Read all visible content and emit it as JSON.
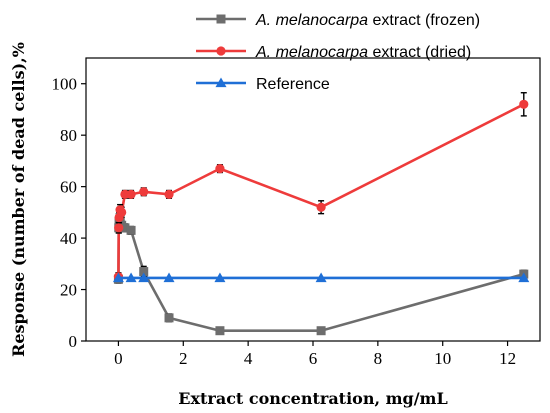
{
  "chart_data": {
    "type": "line",
    "xlabel": "Extract concentration, mg/mL",
    "ylabel": "Response (number of dead cells),%",
    "xlim": [
      -1,
      13
    ],
    "ylim": [
      0,
      110
    ],
    "x_ticks": [
      0,
      2,
      4,
      6,
      8,
      10,
      12
    ],
    "y_ticks": [
      0,
      20,
      40,
      60,
      80,
      100
    ],
    "grid": false,
    "legend_position": "top-right",
    "series": [
      {
        "name_italic": "A. melanocarpa",
        "name_rest": " extract (frozen)",
        "color": "#6d6d6d",
        "marker": "square",
        "x": [
          0.0,
          0.01,
          0.02,
          0.05,
          0.1,
          0.2,
          0.39,
          0.78,
          1.56,
          3.13,
          6.25,
          12.5
        ],
        "y": [
          24,
          44,
          46,
          48,
          45,
          44,
          43,
          27,
          9,
          4,
          4,
          26
        ],
        "err": [
          1.5,
          2,
          2,
          2,
          2,
          1.5,
          1.5,
          2,
          1.5,
          1,
          1,
          1.5
        ]
      },
      {
        "name_italic": "A. melanocarpa",
        "name_rest": " extract (dried)",
        "color": "#ee3b3b",
        "marker": "circle",
        "x": [
          0.0,
          0.01,
          0.02,
          0.05,
          0.1,
          0.2,
          0.39,
          0.78,
          1.56,
          3.13,
          6.25,
          12.5
        ],
        "y": [
          25,
          44,
          48,
          51,
          50,
          57,
          57,
          58,
          57,
          67,
          52,
          92
        ],
        "err": [
          1.5,
          2,
          2,
          2,
          2,
          1.5,
          1.5,
          1.5,
          1.5,
          1.5,
          2.5,
          4.5
        ]
      },
      {
        "name_italic": "",
        "name_rest": "Reference",
        "color": "#1f6fd6",
        "marker": "triangle",
        "x": [
          0.0,
          0.39,
          0.78,
          1.56,
          3.13,
          6.25,
          12.5
        ],
        "y": [
          24.5,
          24.5,
          24.5,
          24.5,
          24.5,
          24.5,
          24.5
        ],
        "err": [
          0,
          0,
          0,
          0,
          0,
          0,
          0
        ]
      }
    ]
  }
}
